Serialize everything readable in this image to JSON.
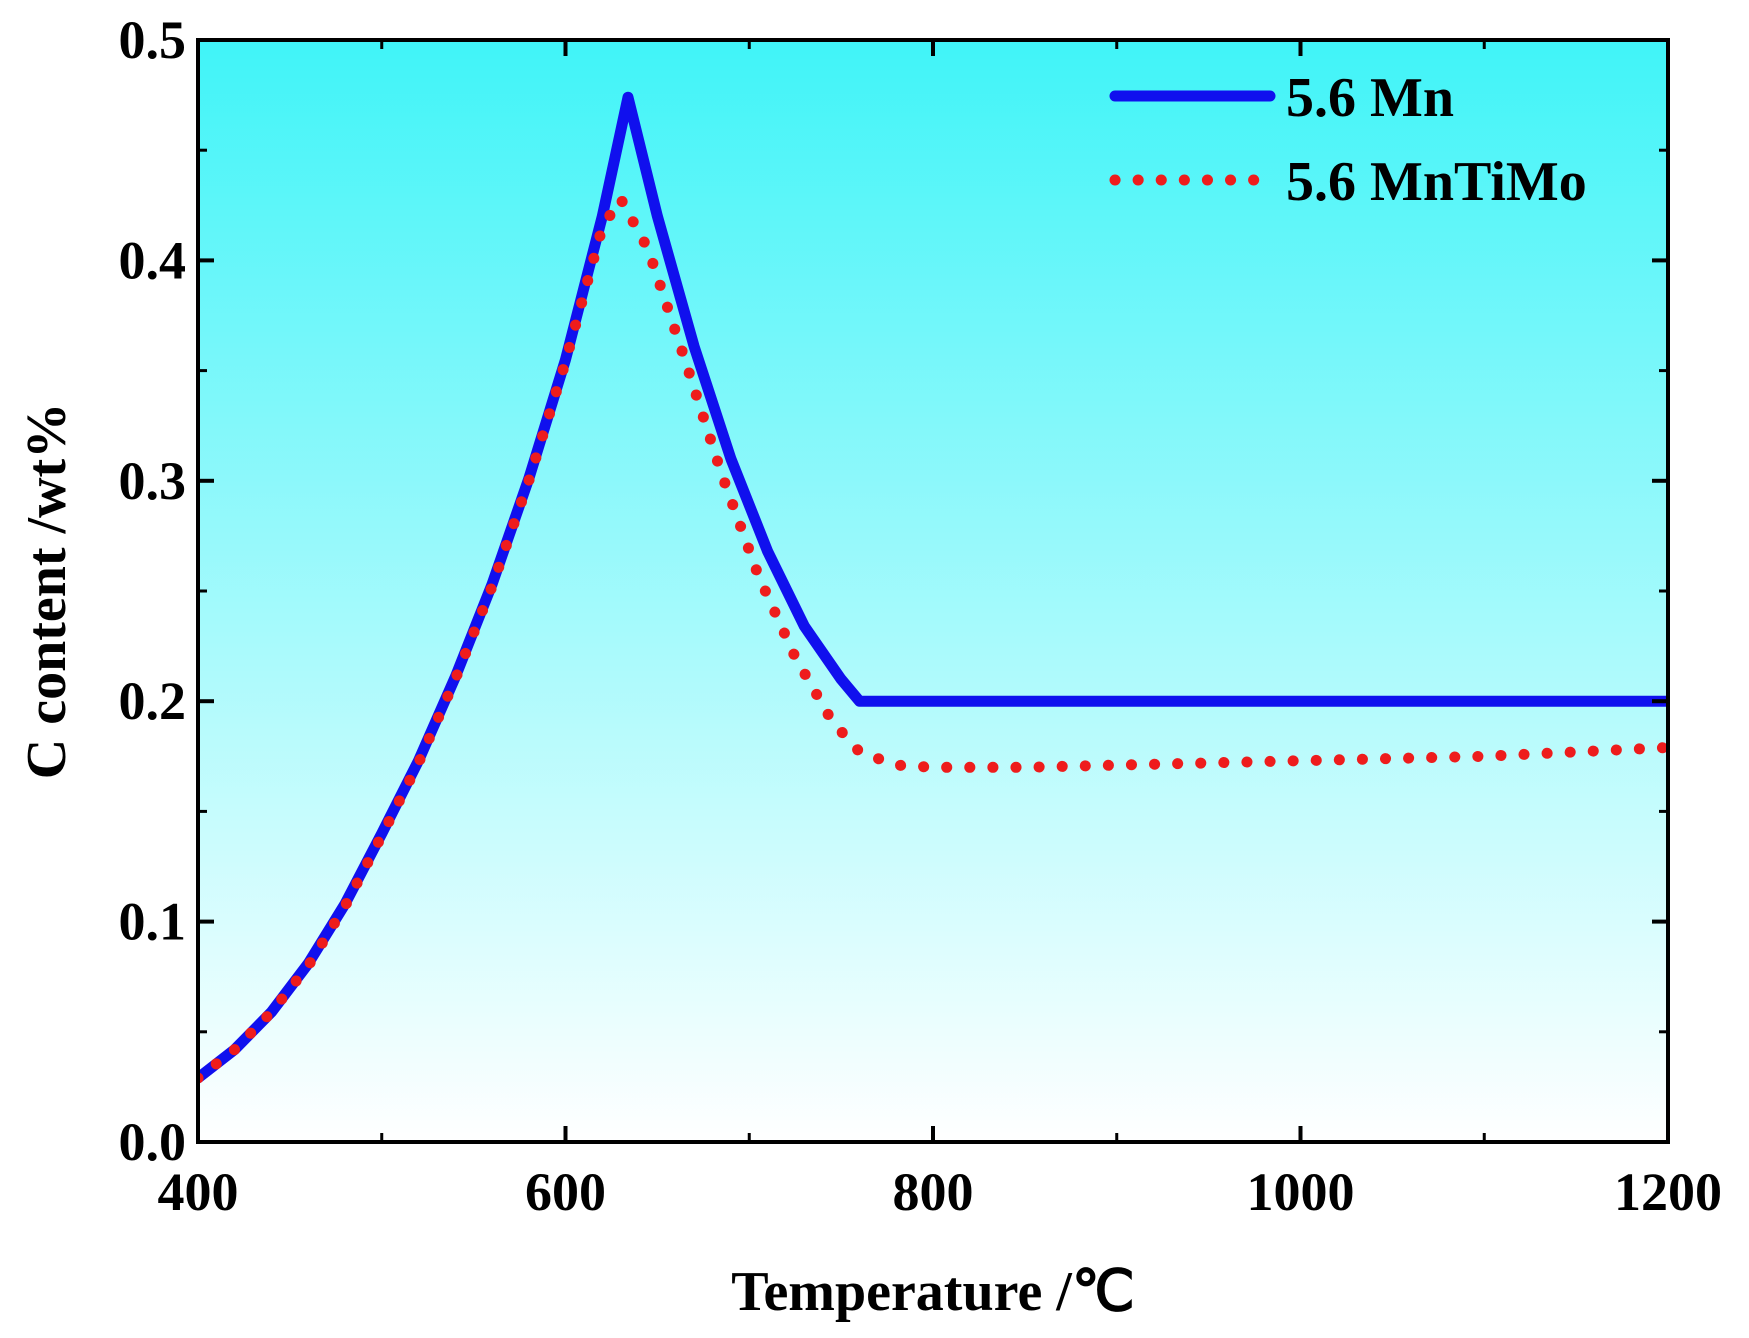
{
  "chart_data": {
    "type": "line",
    "title": "",
    "xlabel": "Temperature /℃",
    "ylabel": "C content /wt%",
    "xlim": [
      400,
      1200
    ],
    "ylim": [
      0.0,
      0.5
    ],
    "xticks": [
      400,
      600,
      800,
      1000,
      1200
    ],
    "xtick_labels": [
      "400",
      "600",
      "800",
      "1000",
      "1200"
    ],
    "yticks": [
      0.0,
      0.1,
      0.2,
      0.3,
      0.4,
      0.5
    ],
    "ytick_labels": [
      "0.0",
      "0.1",
      "0.2",
      "0.3",
      "0.4",
      "0.5"
    ],
    "legend_position": "top-right",
    "grid": false,
    "background": {
      "top_color": "#40f4f8",
      "bottom_color": "#ffffff"
    },
    "series": [
      {
        "name": "5.6 Mn",
        "color": "#1010ee",
        "style": "solid",
        "x": [
          400,
          420,
          440,
          460,
          480,
          500,
          520,
          540,
          560,
          580,
          600,
          620,
          634,
          650,
          670,
          690,
          710,
          730,
          750,
          760,
          800,
          900,
          1000,
          1100,
          1200
        ],
        "y": [
          0.029,
          0.042,
          0.059,
          0.081,
          0.108,
          0.14,
          0.173,
          0.211,
          0.253,
          0.301,
          0.355,
          0.42,
          0.474,
          0.42,
          0.361,
          0.31,
          0.268,
          0.234,
          0.21,
          0.2,
          0.2,
          0.2,
          0.2,
          0.2,
          0.2
        ]
      },
      {
        "name": "5.6 MnTiMo",
        "color": "#ee1c1c",
        "style": "dotted",
        "x": [
          400,
          420,
          440,
          460,
          480,
          500,
          520,
          540,
          560,
          580,
          600,
          620,
          630,
          645,
          665,
          685,
          705,
          725,
          745,
          760,
          780,
          800,
          850,
          900,
          950,
          1000,
          1050,
          1100,
          1150,
          1200
        ],
        "y": [
          0.029,
          0.042,
          0.059,
          0.08,
          0.107,
          0.139,
          0.172,
          0.21,
          0.252,
          0.3,
          0.354,
          0.415,
          0.428,
          0.405,
          0.355,
          0.303,
          0.257,
          0.22,
          0.191,
          0.177,
          0.171,
          0.17,
          0.17,
          0.171,
          0.172,
          0.173,
          0.174,
          0.175,
          0.177,
          0.179
        ]
      }
    ]
  }
}
